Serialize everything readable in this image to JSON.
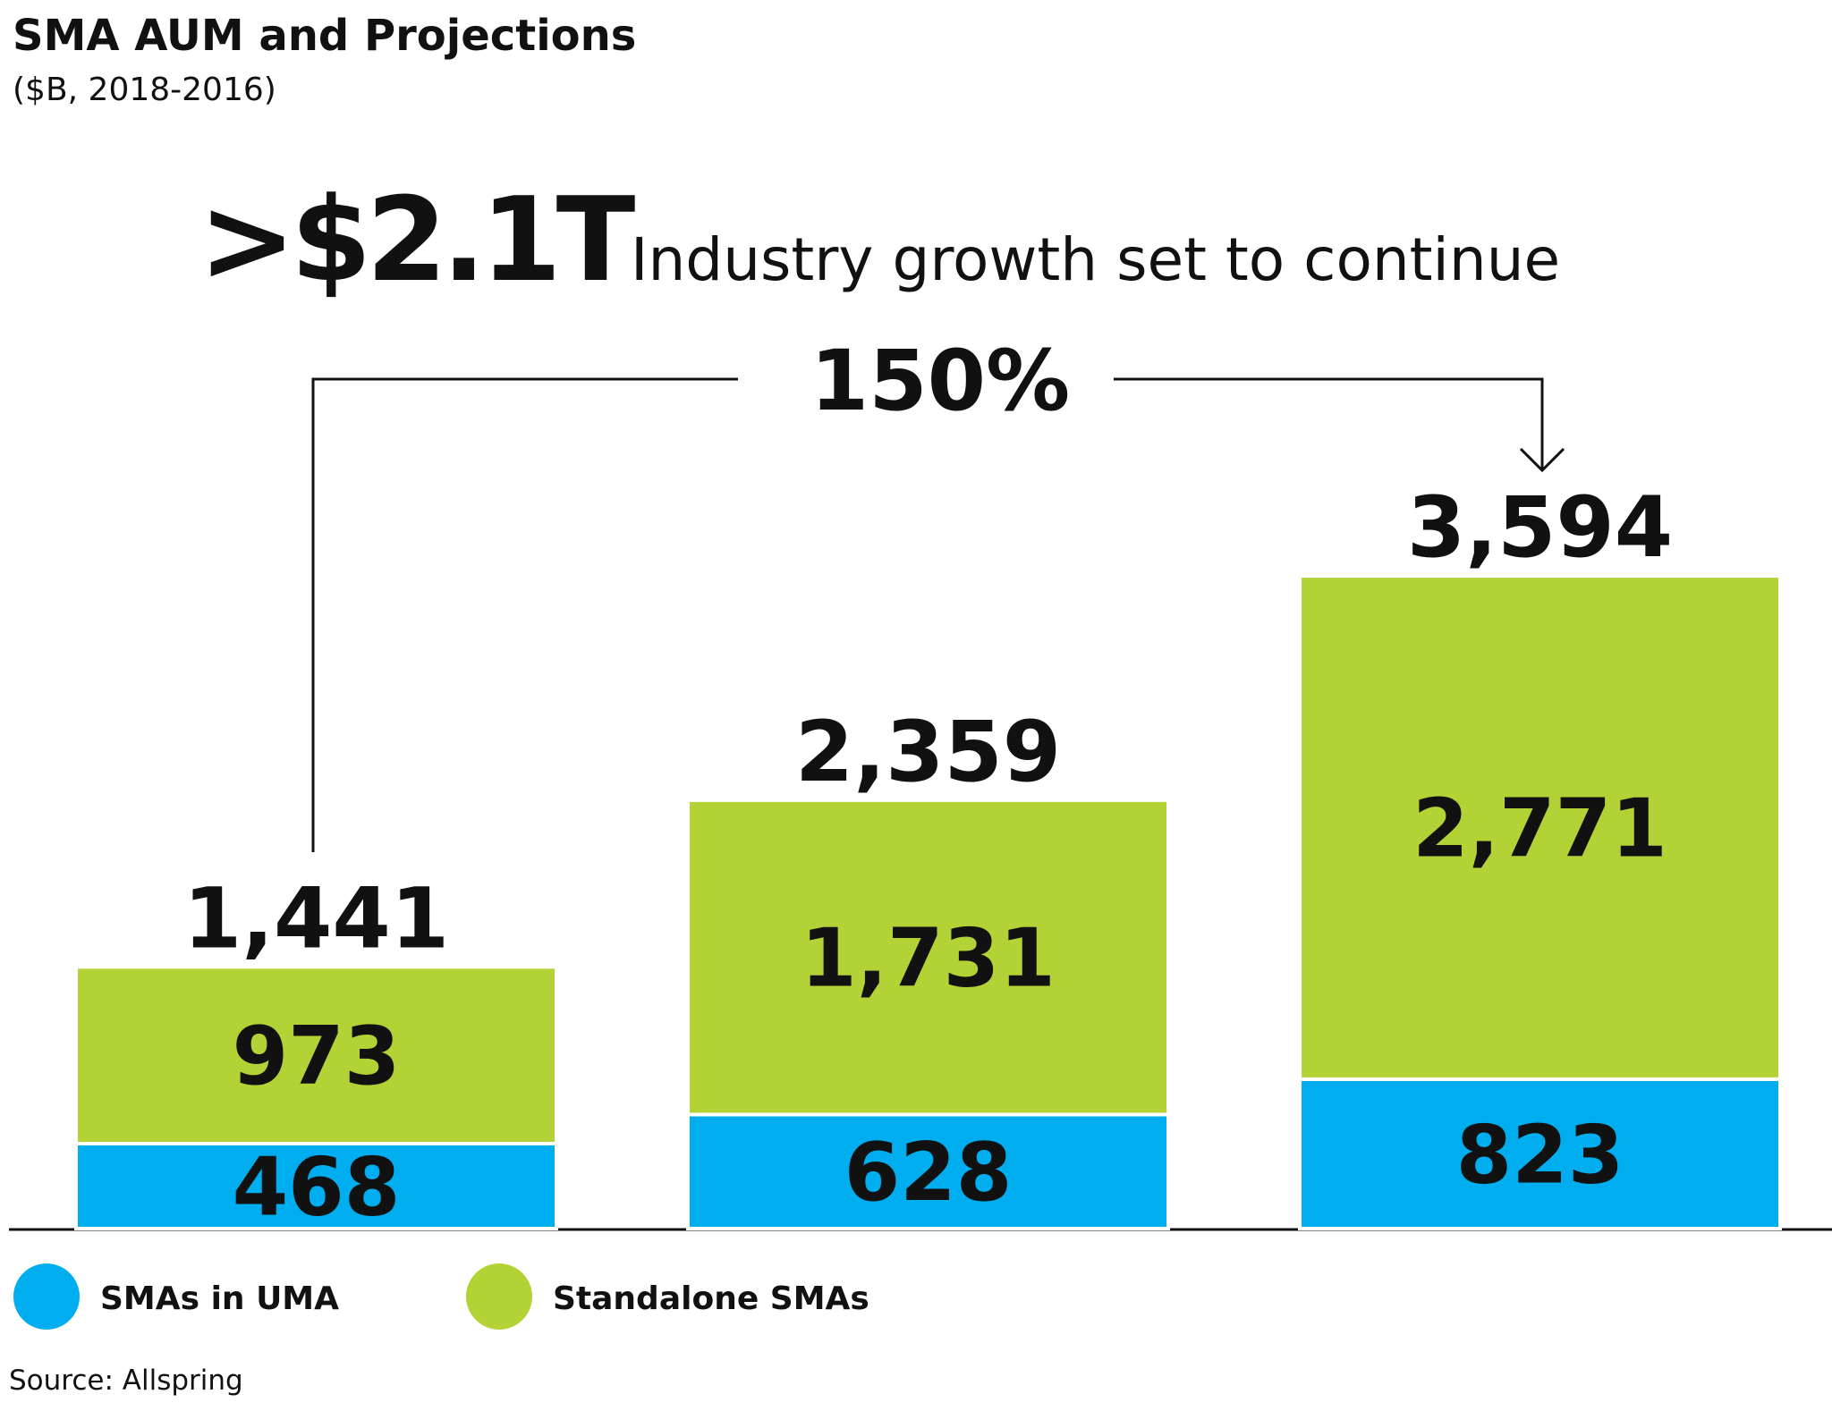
{
  "chart_data": {
    "type": "stacked_bar",
    "title": "SMA AUM and Projections",
    "subtitle": "($B, 2018-2016)",
    "headline": ">$2.1T",
    "headline_text": "Industry growth set to continue",
    "growth_annotation": "150%",
    "categories": [
      null,
      null,
      null
    ],
    "series": [
      {
        "name": "SMAs in UMA",
        "color": "#00aeef",
        "values": [
          468,
          628,
          823
        ]
      },
      {
        "name": "Standalone SMAs",
        "color": "#b2d235",
        "values": [
          973,
          1731,
          2771
        ],
        "value_labels": [
          "973",
          "1,731",
          "2,771"
        ]
      }
    ],
    "totals": [
      1441,
      2359,
      3594
    ],
    "total_labels": [
      "1,441",
      "2,359",
      "3,594"
    ],
    "source": "Source: Allspring"
  }
}
